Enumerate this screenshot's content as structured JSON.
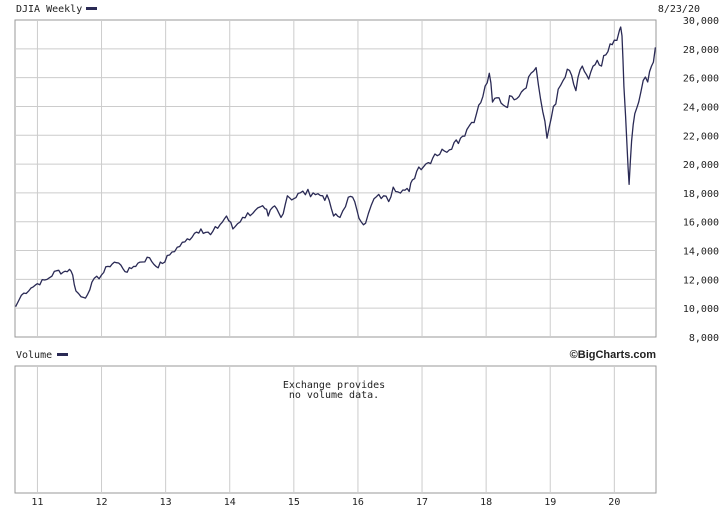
{
  "header": {
    "series_label": "DJIA Weekly",
    "date": "8/23/20"
  },
  "volume_panel": {
    "label": "Volume",
    "brand": "©BigCharts.com",
    "message_line1": "Exchange provides",
    "message_line2": "no volume data."
  },
  "colors": {
    "line": "#2a2a55",
    "grid": "#cccccc",
    "frame": "#999999",
    "background": "#ffffff"
  },
  "chart_data": {
    "type": "line",
    "y_ticks": [
      8000,
      10000,
      12000,
      14000,
      16000,
      18000,
      20000,
      22000,
      24000,
      26000,
      28000,
      30000
    ],
    "y_tick_labels": [
      "8,000",
      "10,000",
      "12,000",
      "14,000",
      "16,000",
      "18,000",
      "20,000",
      "22,000",
      "24,000",
      "26,000",
      "28,000",
      "30,000"
    ],
    "ylim": [
      8000,
      30000
    ],
    "x_ticks": [
      2011,
      2012,
      2013,
      2014,
      2015,
      2016,
      2017,
      2018,
      2019,
      2020
    ],
    "x_tick_labels": [
      "11",
      "12",
      "13",
      "14",
      "15",
      "16",
      "17",
      "18",
      "19",
      "20"
    ],
    "xlim": [
      2010.65,
      2020.65
    ],
    "grid": true,
    "series": [
      {
        "points": [
          [
            2010.66,
            10100
          ],
          [
            2010.75,
            10900
          ],
          [
            2010.9,
            11400
          ],
          [
            2011.0,
            11700
          ],
          [
            2011.15,
            12000
          ],
          [
            2011.3,
            12600
          ],
          [
            2011.4,
            12500
          ],
          [
            2011.5,
            12700
          ],
          [
            2011.55,
            12300
          ],
          [
            2011.6,
            11200
          ],
          [
            2011.68,
            10800
          ],
          [
            2011.75,
            10700
          ],
          [
            2011.85,
            11800
          ],
          [
            2012.0,
            12300
          ],
          [
            2012.1,
            12900
          ],
          [
            2012.2,
            13200
          ],
          [
            2012.3,
            13000
          ],
          [
            2012.4,
            12500
          ],
          [
            2012.5,
            12900
          ],
          [
            2012.6,
            13200
          ],
          [
            2012.75,
            13500
          ],
          [
            2012.85,
            12900
          ],
          [
            2012.95,
            13100
          ],
          [
            2013.1,
            13900
          ],
          [
            2013.3,
            14600
          ],
          [
            2013.45,
            15200
          ],
          [
            2013.55,
            15500
          ],
          [
            2013.7,
            15100
          ],
          [
            2013.85,
            15800
          ],
          [
            2013.95,
            16400
          ],
          [
            2014.05,
            15500
          ],
          [
            2014.2,
            16300
          ],
          [
            2014.4,
            16800
          ],
          [
            2014.55,
            16900
          ],
          [
            2014.6,
            16400
          ],
          [
            2014.7,
            17100
          ],
          [
            2014.8,
            16300
          ],
          [
            2014.9,
            17800
          ],
          [
            2015.0,
            17600
          ],
          [
            2015.1,
            18000
          ],
          [
            2015.3,
            18000
          ],
          [
            2015.45,
            17800
          ],
          [
            2015.55,
            17500
          ],
          [
            2015.62,
            16400
          ],
          [
            2015.72,
            16300
          ],
          [
            2015.85,
            17700
          ],
          [
            2015.95,
            17400
          ],
          [
            2016.05,
            16000
          ],
          [
            2016.12,
            15900
          ],
          [
            2016.25,
            17600
          ],
          [
            2016.4,
            17800
          ],
          [
            2016.48,
            17400
          ],
          [
            2016.55,
            18400
          ],
          [
            2016.7,
            18200
          ],
          [
            2016.8,
            18100
          ],
          [
            2016.85,
            18900
          ],
          [
            2016.95,
            19800
          ],
          [
            2017.1,
            20100
          ],
          [
            2017.2,
            20700
          ],
          [
            2017.35,
            20900
          ],
          [
            2017.5,
            21500
          ],
          [
            2017.6,
            21800
          ],
          [
            2017.7,
            22400
          ],
          [
            2017.85,
            23500
          ],
          [
            2017.95,
            24700
          ],
          [
            2018.05,
            26300
          ],
          [
            2018.1,
            24300
          ],
          [
            2018.2,
            24600
          ],
          [
            2018.3,
            24000
          ],
          [
            2018.4,
            24700
          ],
          [
            2018.55,
            25000
          ],
          [
            2018.7,
            26300
          ],
          [
            2018.78,
            26700
          ],
          [
            2018.85,
            24500
          ],
          [
            2018.95,
            21800
          ],
          [
            2019.05,
            24000
          ],
          [
            2019.2,
            25800
          ],
          [
            2019.3,
            26500
          ],
          [
            2019.4,
            25100
          ],
          [
            2019.5,
            26800
          ],
          [
            2019.6,
            25900
          ],
          [
            2019.7,
            26900
          ],
          [
            2019.8,
            26800
          ],
          [
            2019.9,
            27800
          ],
          [
            2020.0,
            28600
          ],
          [
            2020.08,
            29300
          ],
          [
            2020.12,
            28900
          ],
          [
            2020.15,
            25400
          ],
          [
            2020.2,
            21000
          ],
          [
            2020.23,
            18600
          ],
          [
            2020.27,
            21600
          ],
          [
            2020.32,
            23500
          ],
          [
            2020.38,
            24300
          ],
          [
            2020.45,
            25800
          ],
          [
            2020.52,
            25700
          ],
          [
            2020.58,
            26800
          ],
          [
            2020.64,
            28100
          ]
        ]
      }
    ]
  }
}
